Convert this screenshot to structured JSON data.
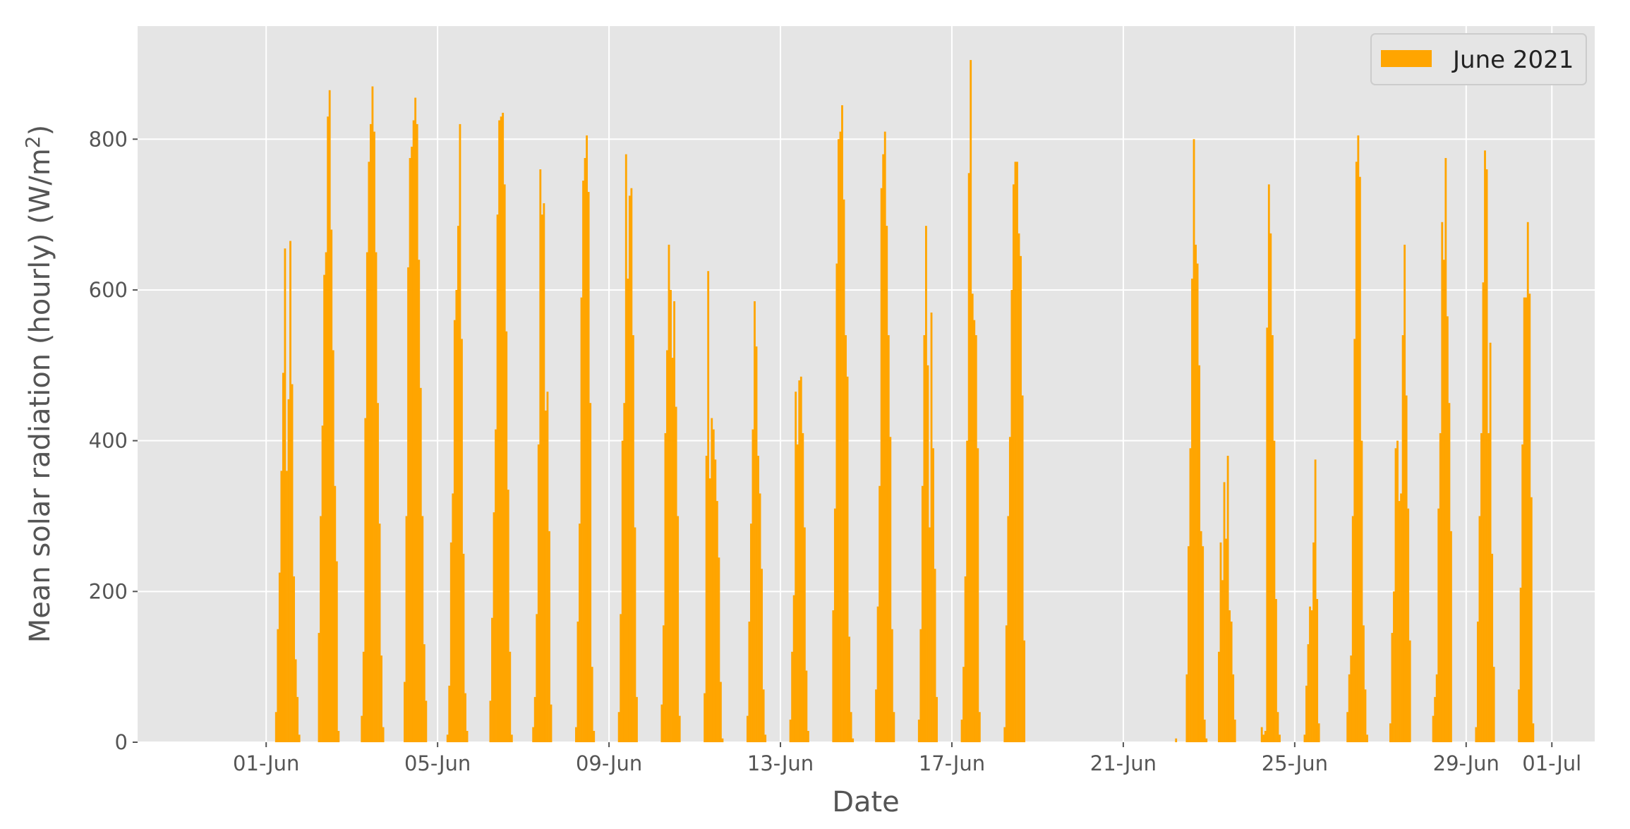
{
  "chart_data": {
    "type": "bar",
    "xlabel": "Date",
    "ylabel": "Mean solar radiation (hourly) (W/m",
    "ylabel_sup": "2",
    "ylabel_end": ")",
    "x_range": [
      "2021-05-29",
      "2021-07-02"
    ],
    "ylim": [
      0,
      950
    ],
    "grid": true,
    "legend": {
      "location": "top-right"
    },
    "series": [
      {
        "name": "June 2021",
        "color": "#FFA500"
      }
    ],
    "x_ticks": [
      {
        "date": "2021-06-01",
        "label": "01-Jun"
      },
      {
        "date": "2021-06-05",
        "label": "05-Jun"
      },
      {
        "date": "2021-06-09",
        "label": "09-Jun"
      },
      {
        "date": "2021-06-13",
        "label": "13-Jun"
      },
      {
        "date": "2021-06-17",
        "label": "17-Jun"
      },
      {
        "date": "2021-06-21",
        "label": "21-Jun"
      },
      {
        "date": "2021-06-25",
        "label": "25-Jun"
      },
      {
        "date": "2021-06-29",
        "label": "29-Jun"
      },
      {
        "date": "2021-07-01",
        "label": "01-Jul"
      }
    ],
    "y_ticks": [
      0,
      200,
      400,
      600,
      800
    ],
    "daily_hourly_values_start_0400": {
      "2021-06-01": [
        0,
        40,
        150,
        225,
        360,
        490,
        655,
        360,
        455,
        665,
        475,
        220,
        110,
        60,
        10,
        0
      ],
      "2021-06-02": [
        0,
        145,
        300,
        420,
        620,
        650,
        830,
        865,
        680,
        520,
        340,
        240,
        15,
        0
      ],
      "2021-06-03": [
        0,
        35,
        120,
        430,
        650,
        770,
        820,
        870,
        810,
        650,
        450,
        290,
        115,
        20,
        0
      ],
      "2021-06-04": [
        0,
        80,
        300,
        630,
        775,
        790,
        825,
        855,
        820,
        640,
        470,
        300,
        130,
        55,
        0
      ],
      "2021-06-05": [
        0,
        10,
        75,
        265,
        330,
        560,
        600,
        685,
        820,
        535,
        250,
        65,
        15,
        0
      ],
      "2021-06-06": [
        0,
        55,
        165,
        305,
        415,
        700,
        825,
        830,
        835,
        740,
        545,
        335,
        120,
        10,
        0
      ],
      "2021-06-07": [
        0,
        20,
        60,
        170,
        395,
        760,
        700,
        715,
        440,
        465,
        280,
        50,
        0
      ],
      "2021-06-08": [
        0,
        20,
        160,
        290,
        590,
        745,
        775,
        805,
        730,
        450,
        100,
        15,
        0
      ],
      "2021-06-09": [
        0,
        40,
        170,
        400,
        450,
        780,
        615,
        725,
        735,
        540,
        285,
        60,
        0
      ],
      "2021-06-10": [
        0,
        50,
        155,
        410,
        520,
        660,
        600,
        510,
        585,
        445,
        300,
        35,
        0
      ],
      "2021-06-11": [
        0,
        65,
        380,
        625,
        350,
        430,
        415,
        375,
        320,
        245,
        80,
        5,
        0
      ],
      "2021-06-12": [
        0,
        35,
        160,
        290,
        415,
        585,
        525,
        380,
        330,
        230,
        70,
        10,
        0
      ],
      "2021-06-13": [
        0,
        30,
        120,
        195,
        465,
        395,
        480,
        485,
        410,
        285,
        95,
        15,
        0
      ],
      "2021-06-14": [
        0,
        175,
        310,
        635,
        800,
        810,
        845,
        720,
        540,
        485,
        140,
        40,
        5,
        0
      ],
      "2021-06-15": [
        0,
        70,
        180,
        340,
        735,
        780,
        810,
        685,
        540,
        405,
        150,
        40,
        0
      ],
      "2021-06-16": [
        0,
        30,
        150,
        340,
        540,
        685,
        500,
        285,
        570,
        390,
        230,
        60,
        0
      ],
      "2021-06-17": [
        0,
        30,
        100,
        220,
        400,
        755,
        905,
        595,
        560,
        540,
        390,
        40,
        0
      ],
      "2021-06-18": [
        0,
        20,
        155,
        300,
        405,
        600,
        740,
        770,
        770,
        675,
        645,
        460,
        135,
        0
      ],
      "2021-06-22": [
        0,
        5,
        0,
        0,
        0,
        0,
        0,
        90,
        260,
        390,
        615,
        800,
        660,
        635,
        500,
        280,
        260,
        30,
        5,
        0
      ],
      "2021-06-23": [
        0,
        120,
        265,
        215,
        345,
        270,
        380,
        175,
        160,
        90,
        30,
        0
      ],
      "2021-06-24": [
        0,
        20,
        10,
        15,
        550,
        740,
        675,
        540,
        400,
        190,
        40,
        10,
        0
      ],
      "2021-06-25": [
        0,
        10,
        75,
        130,
        180,
        175,
        265,
        375,
        190,
        25,
        0
      ],
      "2021-06-26": [
        0,
        40,
        90,
        115,
        300,
        535,
        770,
        805,
        750,
        400,
        155,
        70,
        10,
        0
      ],
      "2021-06-27": [
        0,
        25,
        145,
        200,
        390,
        400,
        320,
        330,
        540,
        660,
        460,
        310,
        135,
        0
      ],
      "2021-06-28": [
        0,
        35,
        60,
        90,
        310,
        410,
        690,
        640,
        775,
        565,
        450,
        280,
        0
      ],
      "2021-06-29": [
        0,
        20,
        160,
        300,
        410,
        610,
        785,
        760,
        410,
        530,
        250,
        100,
        0
      ],
      "2021-06-30": [
        0,
        70,
        205,
        395,
        590,
        590,
        690,
        595,
        325,
        25,
        0
      ]
    }
  }
}
